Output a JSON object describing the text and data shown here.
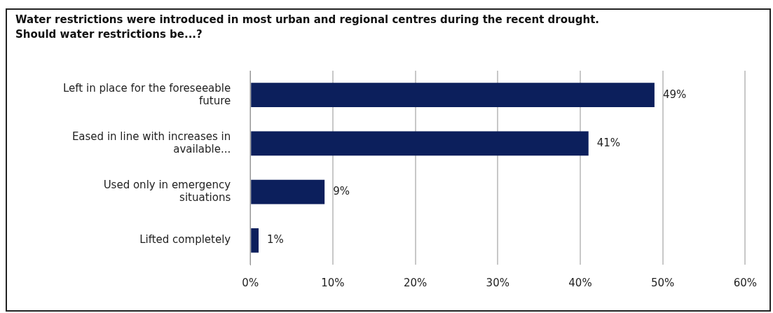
{
  "chart_data": {
    "type": "bar",
    "orientation": "horizontal",
    "title": "Water restrictions were introduced in most urban and regional centres during the recent drought. Should water restrictions be...?",
    "categories": [
      "Left in place for the foreseeable future",
      "Eased in line with increases in available...",
      "Used only in emergency situations",
      "Lifted completely"
    ],
    "values": [
      49,
      41,
      9,
      1
    ],
    "value_labels": [
      "49%",
      "41%",
      "9%",
      "1%"
    ],
    "color": "#0c1f5c",
    "xlim": [
      0,
      60
    ],
    "xticks": [
      {
        "value": 0,
        "label": "0%"
      },
      {
        "value": 10,
        "label": "10%"
      },
      {
        "value": 20,
        "label": "20%"
      },
      {
        "value": 30,
        "label": "30%"
      },
      {
        "value": 40,
        "label": "40%"
      },
      {
        "value": 50,
        "label": "50%"
      },
      {
        "value": 60,
        "label": "60%"
      }
    ],
    "grid": "x"
  }
}
